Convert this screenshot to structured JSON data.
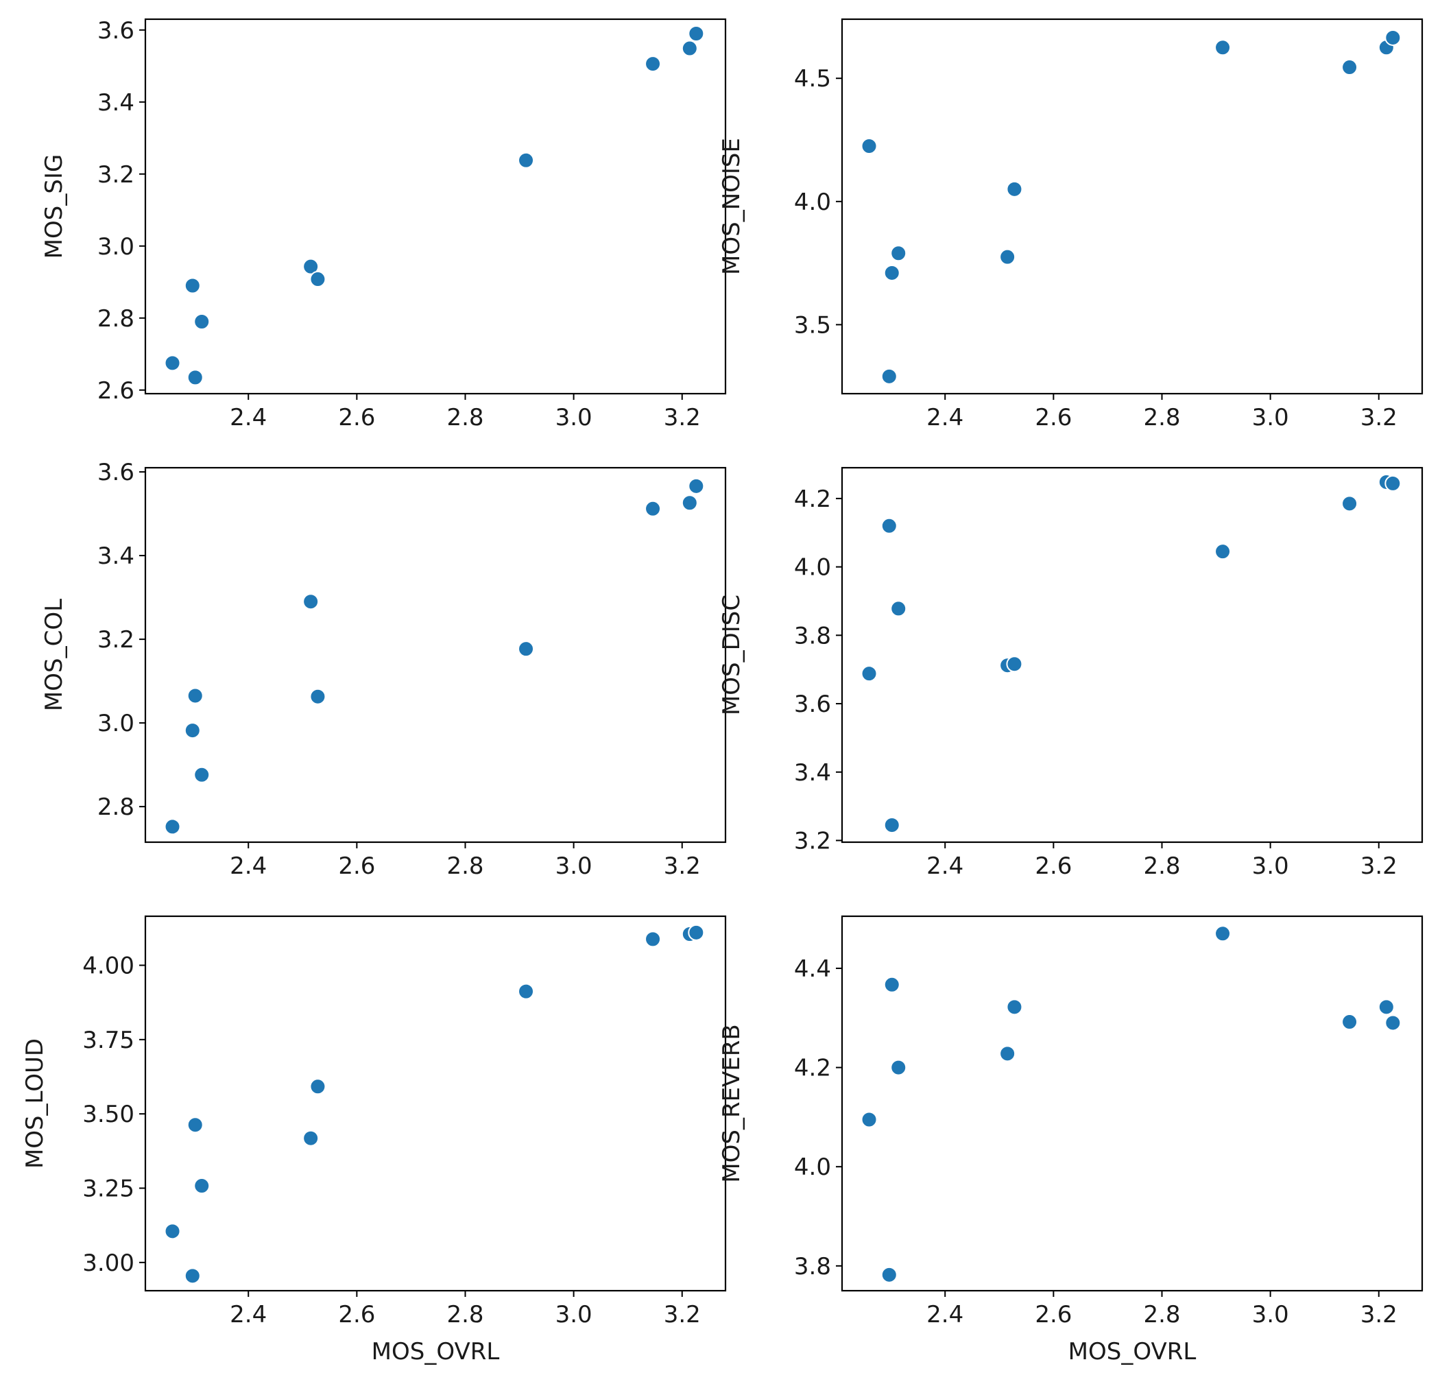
{
  "colors": {
    "marker": "#1f77b4"
  },
  "chart_data": [
    {
      "type": "scatter",
      "xlabel": "",
      "ylabel": "MOS_SIG",
      "xlim": [
        2.21,
        3.28
      ],
      "ylim": [
        2.59,
        3.63
      ],
      "xticks": [
        2.4,
        2.6,
        2.8,
        3.0,
        3.2
      ],
      "xtick_labels": [
        "2.4",
        "2.6",
        "2.8",
        "3.0",
        "3.2"
      ],
      "yticks": [
        2.6,
        2.8,
        3.0,
        3.2,
        3.4,
        3.6
      ],
      "ytick_labels": [
        "2.6",
        "2.8",
        "3.0",
        "3.2",
        "3.4",
        "3.6"
      ],
      "grid": false,
      "x": [
        2.26,
        2.297,
        2.302,
        2.314,
        2.515,
        2.528,
        2.912,
        3.146,
        3.214,
        3.226
      ],
      "y": [
        2.675,
        2.89,
        2.635,
        2.79,
        2.943,
        2.908,
        3.238,
        3.506,
        3.549,
        3.59
      ]
    },
    {
      "type": "scatter",
      "xlabel": "",
      "ylabel": "MOS_NOISE",
      "xlim": [
        2.21,
        3.28
      ],
      "ylim": [
        3.22,
        4.74
      ],
      "xticks": [
        2.4,
        2.6,
        2.8,
        3.0,
        3.2
      ],
      "xtick_labels": [
        "2.4",
        "2.6",
        "2.8",
        "3.0",
        "3.2"
      ],
      "yticks": [
        3.5,
        4.0,
        4.5
      ],
      "ytick_labels": [
        "3.5",
        "4.0",
        "4.5"
      ],
      "grid": false,
      "x": [
        2.26,
        2.297,
        2.302,
        2.314,
        2.515,
        2.528,
        2.912,
        3.146,
        3.214,
        3.226
      ],
      "y": [
        4.225,
        3.29,
        3.71,
        3.79,
        3.775,
        4.05,
        4.625,
        4.545,
        4.625,
        4.665
      ]
    },
    {
      "type": "scatter",
      "xlabel": "",
      "ylabel": "MOS_COL",
      "xlim": [
        2.21,
        3.28
      ],
      "ylim": [
        2.715,
        3.61
      ],
      "xticks": [
        2.4,
        2.6,
        2.8,
        3.0,
        3.2
      ],
      "xtick_labels": [
        "2.4",
        "2.6",
        "2.8",
        "3.0",
        "3.2"
      ],
      "yticks": [
        2.8,
        3.0,
        3.2,
        3.4,
        3.6
      ],
      "ytick_labels": [
        "2.8",
        "3.0",
        "3.2",
        "3.4",
        "3.6"
      ],
      "grid": false,
      "x": [
        2.26,
        2.297,
        2.302,
        2.314,
        2.515,
        2.528,
        2.912,
        3.146,
        3.214,
        3.226
      ],
      "y": [
        2.752,
        2.982,
        3.065,
        2.876,
        3.29,
        3.063,
        3.177,
        3.512,
        3.526,
        3.566
      ]
    },
    {
      "type": "scatter",
      "xlabel": "",
      "ylabel": "MOS_DISC",
      "xlim": [
        2.21,
        3.28
      ],
      "ylim": [
        3.195,
        4.29
      ],
      "xticks": [
        2.4,
        2.6,
        2.8,
        3.0,
        3.2
      ],
      "xtick_labels": [
        "2.4",
        "2.6",
        "2.8",
        "3.0",
        "3.2"
      ],
      "yticks": [
        3.2,
        3.4,
        3.6,
        3.8,
        4.0,
        4.2
      ],
      "ytick_labels": [
        "3.2",
        "3.4",
        "3.6",
        "3.8",
        "4.0",
        "4.2"
      ],
      "grid": false,
      "x": [
        2.26,
        2.297,
        2.302,
        2.314,
        2.515,
        2.528,
        2.912,
        3.146,
        3.214,
        3.226
      ],
      "y": [
        3.688,
        4.12,
        3.245,
        3.878,
        3.712,
        3.716,
        4.045,
        4.185,
        4.248,
        4.244
      ]
    },
    {
      "type": "scatter",
      "xlabel": "MOS_OVRL",
      "ylabel": "MOS_LOUD",
      "xlim": [
        2.21,
        3.28
      ],
      "ylim": [
        2.905,
        4.165
      ],
      "xticks": [
        2.4,
        2.6,
        2.8,
        3.0,
        3.2
      ],
      "xtick_labels": [
        "2.4",
        "2.6",
        "2.8",
        "3.0",
        "3.2"
      ],
      "yticks": [
        3.0,
        3.25,
        3.5,
        3.75,
        4.0
      ],
      "ytick_labels": [
        "3.00",
        "3.25",
        "3.50",
        "3.75",
        "4.00"
      ],
      "grid": false,
      "x": [
        2.26,
        2.297,
        2.302,
        2.314,
        2.515,
        2.528,
        2.912,
        3.146,
        3.214,
        3.226
      ],
      "y": [
        3.105,
        2.955,
        3.463,
        3.258,
        3.418,
        3.592,
        3.912,
        4.088,
        4.105,
        4.11
      ]
    },
    {
      "type": "scatter",
      "xlabel": "MOS_OVRL",
      "ylabel": "MOS_REVERB",
      "xlim": [
        2.21,
        3.28
      ],
      "ylim": [
        3.75,
        4.505
      ],
      "xticks": [
        2.4,
        2.6,
        2.8,
        3.0,
        3.2
      ],
      "xtick_labels": [
        "2.4",
        "2.6",
        "2.8",
        "3.0",
        "3.2"
      ],
      "yticks": [
        3.8,
        4.0,
        4.2,
        4.4
      ],
      "ytick_labels": [
        "3.8",
        "4.0",
        "4.2",
        "4.4"
      ],
      "grid": false,
      "x": [
        2.26,
        2.297,
        2.302,
        2.314,
        2.515,
        2.528,
        2.912,
        3.146,
        3.214,
        3.226
      ],
      "y": [
        4.095,
        3.782,
        4.367,
        4.2,
        4.228,
        4.322,
        4.47,
        4.292,
        4.322,
        4.29
      ]
    }
  ]
}
